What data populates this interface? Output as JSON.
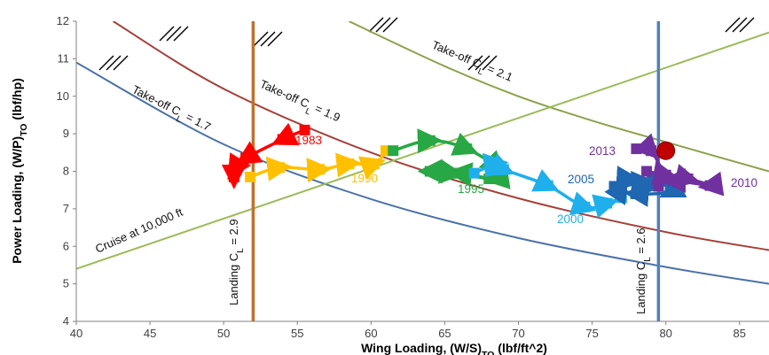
{
  "chart_data": {
    "type": "line",
    "xlabel": "Wing Loading, (W/S)TO (lbf/ft^2)",
    "ylabel": "Power Loading, (W/P)TO (lbf/hp)",
    "xlim": [
      40,
      87
    ],
    "ylim": [
      4,
      12
    ],
    "x_ticks": [
      "40",
      "45",
      "50",
      "55",
      "60",
      "65",
      "70",
      "75",
      "80",
      "85"
    ],
    "y_ticks": [
      "4",
      "5",
      "6",
      "7",
      "8",
      "9",
      "10",
      "11",
      "12"
    ],
    "grid": false,
    "constraints": [
      {
        "name": "Take-off CL = 1.7",
        "label": "Take-off C_L = 1.7",
        "color": "#4a72a8",
        "x": [
          40,
          50,
          60,
          70,
          80,
          87
        ],
        "y": [
          10.9,
          8.72,
          7.26,
          6.22,
          5.45,
          5.0
        ]
      },
      {
        "name": "Take-off CL = 1.9",
        "label": "Take-off C_L = 1.9",
        "color": "#a5403a",
        "x": [
          42.5,
          50,
          60,
          70,
          80,
          87
        ],
        "y": [
          12.0,
          10.2,
          8.5,
          7.28,
          6.38,
          5.9
        ]
      },
      {
        "name": "Take-off CL = 2.1",
        "label": "Take-off C_L = 2.1",
        "color": "#8aa24a",
        "x": [
          58.5,
          65,
          70,
          75,
          80,
          87
        ],
        "y": [
          12.0,
          10.8,
          10.0,
          9.35,
          8.78,
          8.0
        ]
      },
      {
        "name": "Cruise at 10,000 ft",
        "label": "Cruise at 10,000 ft",
        "color": "#9bbb59",
        "x": [
          40,
          87
        ],
        "y": [
          5.4,
          11.7
        ]
      }
    ],
    "landing_limits": [
      {
        "label": "Landing C_L = 2.9",
        "x": 52,
        "color": "#c0712b"
      },
      {
        "label": "Landing C_L = 2.6",
        "x": 79.5,
        "color": "#4f81bd"
      }
    ],
    "series": [
      {
        "name": "1983",
        "color": "#ff0000",
        "x": [
          55.5,
          54.0,
          51.5,
          50.7,
          50.7,
          50.7
        ],
        "y": [
          9.1,
          8.85,
          8.35,
          8.05,
          7.85,
          7.9
        ]
      },
      {
        "name": "1990",
        "color": "#ffc000",
        "x": [
          51.8,
          53.8,
          56.5,
          58.5,
          60.2,
          61.0
        ],
        "y": [
          7.85,
          8.1,
          8.05,
          8.2,
          8.2,
          8.55
        ]
      },
      {
        "name": "1995",
        "color": "#27a844",
        "x": [
          61.5,
          64.0,
          66.5,
          68.5,
          68.5,
          66.0,
          64.0,
          65.5,
          68.0
        ],
        "y": [
          8.55,
          8.82,
          8.6,
          8.1,
          7.8,
          7.95,
          8.0,
          7.95,
          7.8
        ]
      },
      {
        "name": "2000",
        "color": "#1fb0ec",
        "x": [
          67.0,
          68.5,
          69.0,
          72.0,
          74.5,
          76.0,
          77.0
        ],
        "y": [
          7.95,
          8.2,
          8.05,
          7.62,
          7.05,
          7.15,
          7.3
        ]
      },
      {
        "name": "2005",
        "color": "#1f67b0",
        "x": [
          76.5,
          77.5,
          78.5,
          79.5,
          80.3,
          78.0,
          77.0,
          78.5,
          79.5
        ],
        "y": [
          7.6,
          7.8,
          7.55,
          7.7,
          7.45,
          7.4,
          7.55,
          7.7,
          7.6
        ]
      },
      {
        "name": "2010",
        "color": "#7030a0",
        "x": [
          78.7,
          80.0,
          81.5,
          83.0,
          80.5,
          79.5
        ],
        "y": [
          8.0,
          7.9,
          7.8,
          7.62,
          7.75,
          7.6
        ]
      },
      {
        "name": "2013",
        "color": "#7030a0",
        "x": [
          78.0,
          79.0,
          80.0
        ],
        "y": [
          8.6,
          8.55,
          7.8
        ]
      }
    ],
    "target_point": {
      "x": 80.0,
      "y": 8.55,
      "color": "#c00000"
    }
  }
}
